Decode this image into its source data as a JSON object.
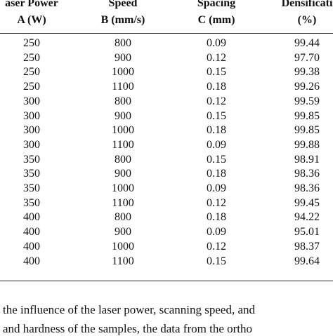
{
  "table": {
    "header": [
      [
        "aser Power",
        "A (W)"
      ],
      [
        "Speed",
        "B (mm/s)"
      ],
      [
        "Spacing",
        "C (mm)"
      ],
      [
        "Densificati",
        "(%)"
      ]
    ],
    "rows": [
      [
        "250",
        "800",
        "0.09",
        "99.44"
      ],
      [
        "250",
        "900",
        "0.12",
        "97.70"
      ],
      [
        "250",
        "1000",
        "0.15",
        "99.38"
      ],
      [
        "250",
        "1100",
        "0.18",
        "99.26"
      ],
      [
        "300",
        "800",
        "0.12",
        "99.59"
      ],
      [
        "300",
        "900",
        "0.15",
        "99.85"
      ],
      [
        "300",
        "1000",
        "0.18",
        "99.85"
      ],
      [
        "300",
        "1100",
        "0.09",
        "99.88"
      ],
      [
        "350",
        "800",
        "0.15",
        "98.91"
      ],
      [
        "350",
        "900",
        "0.18",
        "98.36"
      ],
      [
        "350",
        "1000",
        "0.09",
        "98.36"
      ],
      [
        "350",
        "1100",
        "0.12",
        "99.45"
      ],
      [
        "400",
        "800",
        "0.18",
        "94.22"
      ],
      [
        "400",
        "900",
        "0.09",
        "95.01"
      ],
      [
        "400",
        "1000",
        "0.12",
        "98.37"
      ],
      [
        "400",
        "1100",
        "0.15",
        "99.64"
      ]
    ]
  },
  "caption": [
    "the influence of the laser power, scanning speed, and",
    "and hardness of the samples, the data from the ortho"
  ]
}
